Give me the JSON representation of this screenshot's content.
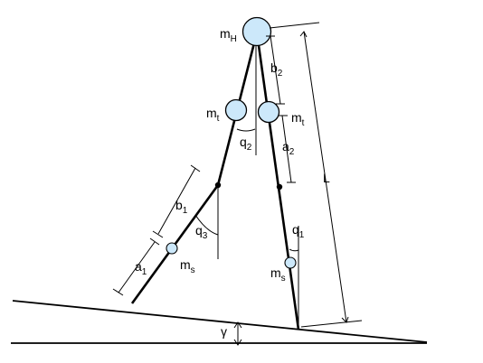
{
  "labels": {
    "hip_mass": {
      "base": "m",
      "sub": "H"
    },
    "thigh_mass_left": {
      "base": "m",
      "sub": "t"
    },
    "thigh_mass_right": {
      "base": "m",
      "sub": "t"
    },
    "shank_mass_left": {
      "base": "m",
      "sub": "s"
    },
    "shank_mass_right": {
      "base": "m",
      "sub": "s"
    },
    "b2": {
      "base": "b",
      "sub": "2"
    },
    "a2": {
      "base": "a",
      "sub": "2"
    },
    "b1": {
      "base": "b",
      "sub": "1"
    },
    "a1": {
      "base": "a",
      "sub": "1"
    },
    "q1": {
      "base": "q",
      "sub": "1"
    },
    "q2": {
      "base": "q",
      "sub": "2"
    },
    "q3": {
      "base": "q",
      "sub": "3"
    },
    "leg_length": "L",
    "slope_angle": "γ"
  },
  "colors": {
    "mass_fill": "#cce8fa",
    "stroke": "#000000"
  }
}
